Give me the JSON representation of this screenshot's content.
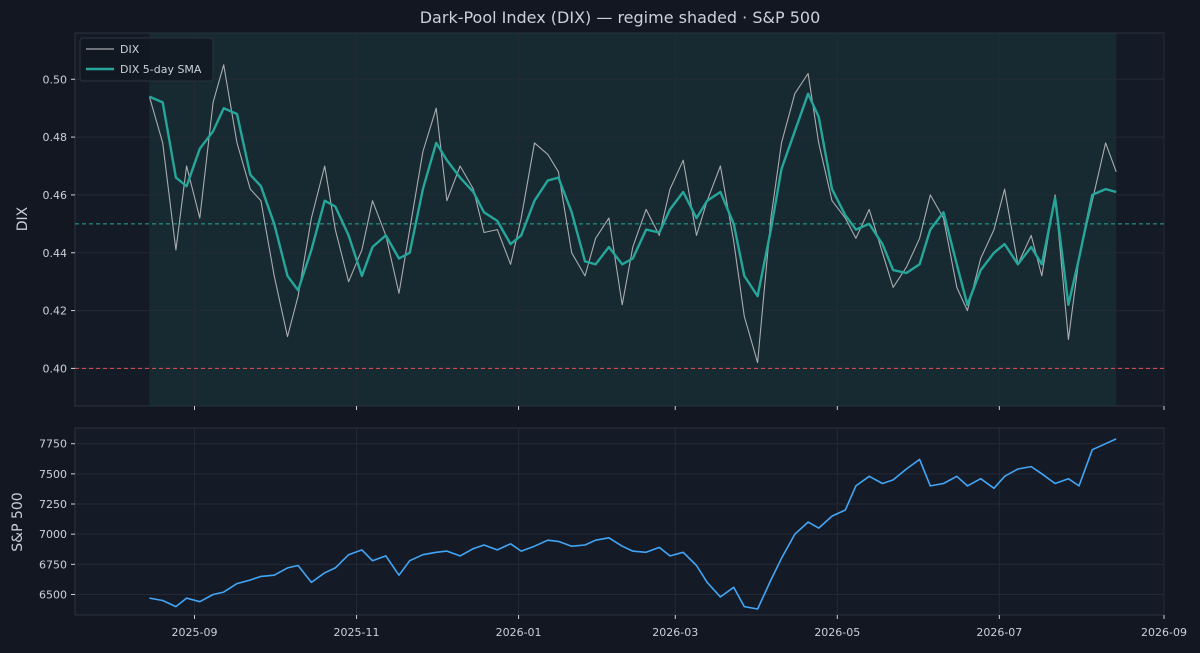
{
  "colors": {
    "background": "#121722",
    "plot_bg": "#151b26",
    "regime_shade": "#19373a",
    "dix_raw": "#a9acb0",
    "dix_sma": "#26a69a",
    "spx": "#42a5f5",
    "ref_line_teal": "#26a69a",
    "ref_line_red": "#e05252",
    "grid": "#232a36",
    "text": "#c9d1d9",
    "tick_text": "#c9d1d9"
  },
  "chart_data": [
    {
      "type": "line",
      "title": "Dark-Pool Index (DIX) — regime shaded · S&P 500",
      "xlabel": "",
      "ylabel": "DIX",
      "ylim": [
        0.387,
        0.516
      ],
      "yticks": [
        0.4,
        0.42,
        0.44,
        0.46,
        0.48,
        0.5
      ],
      "ytick_labels": [
        "0.40",
        "0.42",
        "0.44",
        "0.46",
        "0.48",
        "0.50"
      ],
      "grid": true,
      "legend_position": "top-left",
      "shaded_regime": {
        "from": "2025-08-15",
        "to": "2026-08-14"
      },
      "reference_lines": [
        {
          "y": 0.45,
          "style": "dashed",
          "color": "teal"
        },
        {
          "y": 0.4,
          "style": "dashed",
          "color": "red"
        }
      ],
      "series": [
        {
          "name": "DIX",
          "x": [
            "2025-08-15",
            "2025-08-20",
            "2025-08-25",
            "2025-08-29",
            "2025-09-03",
            "2025-09-08",
            "2025-09-12",
            "2025-09-17",
            "2025-09-22",
            "2025-09-26",
            "2025-10-01",
            "2025-10-06",
            "2025-10-10",
            "2025-10-15",
            "2025-10-20",
            "2025-10-24",
            "2025-10-29",
            "2025-11-03",
            "2025-11-07",
            "2025-11-12",
            "2025-11-17",
            "2025-11-21",
            "2025-11-26",
            "2025-12-01",
            "2025-12-05",
            "2025-12-10",
            "2025-12-15",
            "2025-12-19",
            "2025-12-24",
            "2025-12-29",
            "2026-01-02",
            "2026-01-07",
            "2026-01-12",
            "2026-01-16",
            "2026-01-21",
            "2026-01-26",
            "2026-01-30",
            "2026-02-04",
            "2026-02-09",
            "2026-02-13",
            "2026-02-18",
            "2026-02-23",
            "2026-02-27",
            "2026-03-04",
            "2026-03-09",
            "2026-03-13",
            "2026-03-18",
            "2026-03-23",
            "2026-03-27",
            "2026-04-01",
            "2026-04-06",
            "2026-04-10",
            "2026-04-15",
            "2026-04-20",
            "2026-04-24",
            "2026-04-29",
            "2026-05-04",
            "2026-05-08",
            "2026-05-13",
            "2026-05-18",
            "2026-05-22",
            "2026-05-27",
            "2026-06-01",
            "2026-06-05",
            "2026-06-10",
            "2026-06-15",
            "2026-06-19",
            "2026-06-24",
            "2026-06-29",
            "2026-07-03",
            "2026-07-08",
            "2026-07-13",
            "2026-07-17",
            "2026-07-22",
            "2026-07-27",
            "2026-07-31",
            "2026-08-05",
            "2026-08-10",
            "2026-08-14"
          ],
          "values": [
            0.494,
            0.478,
            0.441,
            0.47,
            0.452,
            0.492,
            0.505,
            0.478,
            0.462,
            0.458,
            0.432,
            0.411,
            0.425,
            0.452,
            0.47,
            0.448,
            0.43,
            0.441,
            0.458,
            0.446,
            0.426,
            0.448,
            0.475,
            0.49,
            0.458,
            0.47,
            0.462,
            0.447,
            0.448,
            0.436,
            0.452,
            0.478,
            0.474,
            0.468,
            0.44,
            0.432,
            0.445,
            0.452,
            0.422,
            0.442,
            0.455,
            0.446,
            0.462,
            0.472,
            0.446,
            0.458,
            0.47,
            0.444,
            0.418,
            0.402,
            0.452,
            0.478,
            0.495,
            0.502,
            0.478,
            0.458,
            0.452,
            0.445,
            0.455,
            0.44,
            0.428,
            0.435,
            0.445,
            0.46,
            0.452,
            0.428,
            0.42,
            0.438,
            0.448,
            0.462,
            0.436,
            0.446,
            0.432,
            0.46,
            0.41,
            0.438,
            0.458,
            0.478,
            0.468
          ]
        },
        {
          "name": "DIX 5-day SMA",
          "x": [
            "2025-08-15",
            "2025-08-20",
            "2025-08-25",
            "2025-08-29",
            "2025-09-03",
            "2025-09-08",
            "2025-09-12",
            "2025-09-17",
            "2025-09-22",
            "2025-09-26",
            "2025-10-01",
            "2025-10-06",
            "2025-10-10",
            "2025-10-15",
            "2025-10-20",
            "2025-10-24",
            "2025-10-29",
            "2025-11-03",
            "2025-11-07",
            "2025-11-12",
            "2025-11-17",
            "2025-11-21",
            "2025-11-26",
            "2025-12-01",
            "2025-12-05",
            "2025-12-10",
            "2025-12-15",
            "2025-12-19",
            "2025-12-24",
            "2025-12-29",
            "2026-01-02",
            "2026-01-07",
            "2026-01-12",
            "2026-01-16",
            "2026-01-21",
            "2026-01-26",
            "2026-01-30",
            "2026-02-04",
            "2026-02-09",
            "2026-02-13",
            "2026-02-18",
            "2026-02-23",
            "2026-02-27",
            "2026-03-04",
            "2026-03-09",
            "2026-03-13",
            "2026-03-18",
            "2026-03-23",
            "2026-03-27",
            "2026-04-01",
            "2026-04-06",
            "2026-04-10",
            "2026-04-15",
            "2026-04-20",
            "2026-04-24",
            "2026-04-29",
            "2026-05-04",
            "2026-05-08",
            "2026-05-13",
            "2026-05-18",
            "2026-05-22",
            "2026-05-27",
            "2026-06-01",
            "2026-06-05",
            "2026-06-10",
            "2026-06-15",
            "2026-06-19",
            "2026-06-24",
            "2026-06-29",
            "2026-07-03",
            "2026-07-08",
            "2026-07-13",
            "2026-07-17",
            "2026-07-22",
            "2026-07-27",
            "2026-07-31",
            "2026-08-05",
            "2026-08-10",
            "2026-08-14"
          ],
          "values": [
            0.494,
            0.492,
            0.466,
            0.463,
            0.476,
            0.482,
            0.49,
            0.488,
            0.467,
            0.463,
            0.45,
            0.432,
            0.427,
            0.441,
            0.458,
            0.456,
            0.446,
            0.432,
            0.442,
            0.446,
            0.438,
            0.44,
            0.462,
            0.478,
            0.472,
            0.466,
            0.461,
            0.454,
            0.451,
            0.443,
            0.446,
            0.458,
            0.465,
            0.466,
            0.454,
            0.437,
            0.436,
            0.442,
            0.436,
            0.438,
            0.448,
            0.447,
            0.455,
            0.461,
            0.452,
            0.458,
            0.461,
            0.45,
            0.432,
            0.425,
            0.448,
            0.469,
            0.482,
            0.495,
            0.487,
            0.462,
            0.453,
            0.448,
            0.45,
            0.443,
            0.434,
            0.433,
            0.436,
            0.448,
            0.454,
            0.436,
            0.422,
            0.434,
            0.44,
            0.443,
            0.436,
            0.442,
            0.436,
            0.459,
            0.422,
            0.438,
            0.46,
            0.462,
            0.461
          ]
        }
      ]
    },
    {
      "type": "line",
      "title": "",
      "xlabel": "",
      "ylabel": "S&P 500",
      "ylim": [
        6330,
        7880
      ],
      "yticks": [
        6500,
        6750,
        7000,
        7250,
        7500,
        7750
      ],
      "ytick_labels": [
        "6500",
        "6750",
        "7000",
        "7250",
        "7500",
        "7750"
      ],
      "xlim": [
        "2025-07-18",
        "2026-09-01"
      ],
      "xticks": [
        "2025-09-01",
        "2025-11-01",
        "2026-01-01",
        "2026-03-01",
        "2026-05-01",
        "2026-07-01",
        "2026-09-01"
      ],
      "xtick_labels": [
        "2025-09",
        "2025-11",
        "2026-01",
        "2026-03",
        "2026-05",
        "2026-07",
        "2026-09"
      ],
      "grid": true,
      "series": [
        {
          "name": "S&P 500",
          "x": [
            "2025-08-15",
            "2025-08-20",
            "2025-08-25",
            "2025-08-29",
            "2025-09-03",
            "2025-09-08",
            "2025-09-12",
            "2025-09-17",
            "2025-09-22",
            "2025-09-26",
            "2025-10-01",
            "2025-10-06",
            "2025-10-10",
            "2025-10-15",
            "2025-10-20",
            "2025-10-24",
            "2025-10-29",
            "2025-11-03",
            "2025-11-07",
            "2025-11-12",
            "2025-11-17",
            "2025-11-21",
            "2025-11-26",
            "2025-12-01",
            "2025-12-05",
            "2025-12-10",
            "2025-12-15",
            "2025-12-19",
            "2025-12-24",
            "2025-12-29",
            "2026-01-02",
            "2026-01-07",
            "2026-01-12",
            "2026-01-16",
            "2026-01-21",
            "2026-01-26",
            "2026-01-30",
            "2026-02-04",
            "2026-02-09",
            "2026-02-13",
            "2026-02-18",
            "2026-02-23",
            "2026-02-27",
            "2026-03-04",
            "2026-03-09",
            "2026-03-13",
            "2026-03-18",
            "2026-03-23",
            "2026-03-27",
            "2026-04-01",
            "2026-04-06",
            "2026-04-10",
            "2026-04-15",
            "2026-04-20",
            "2026-04-24",
            "2026-04-29",
            "2026-05-04",
            "2026-05-08",
            "2026-05-13",
            "2026-05-18",
            "2026-05-22",
            "2026-05-27",
            "2026-06-01",
            "2026-06-05",
            "2026-06-10",
            "2026-06-15",
            "2026-06-19",
            "2026-06-24",
            "2026-06-29",
            "2026-07-03",
            "2026-07-08",
            "2026-07-13",
            "2026-07-17",
            "2026-07-22",
            "2026-07-27",
            "2026-07-31",
            "2026-08-05",
            "2026-08-10",
            "2026-08-14"
          ],
          "values": [
            6470,
            6450,
            6400,
            6470,
            6440,
            6500,
            6520,
            6590,
            6620,
            6650,
            6660,
            6720,
            6740,
            6600,
            6680,
            6720,
            6830,
            6870,
            6780,
            6820,
            6660,
            6780,
            6830,
            6850,
            6860,
            6820,
            6880,
            6910,
            6870,
            6920,
            6860,
            6900,
            6950,
            6940,
            6900,
            6910,
            6950,
            6970,
            6900,
            6860,
            6850,
            6890,
            6820,
            6850,
            6740,
            6600,
            6480,
            6560,
            6400,
            6380,
            6620,
            6800,
            7000,
            7100,
            7050,
            7150,
            7200,
            7400,
            7480,
            7420,
            7450,
            7540,
            7620,
            7400,
            7420,
            7480,
            7400,
            7460,
            7380,
            7480,
            7540,
            7560,
            7500,
            7420,
            7460,
            7400,
            7700,
            7750,
            7790
          ]
        }
      ]
    }
  ]
}
